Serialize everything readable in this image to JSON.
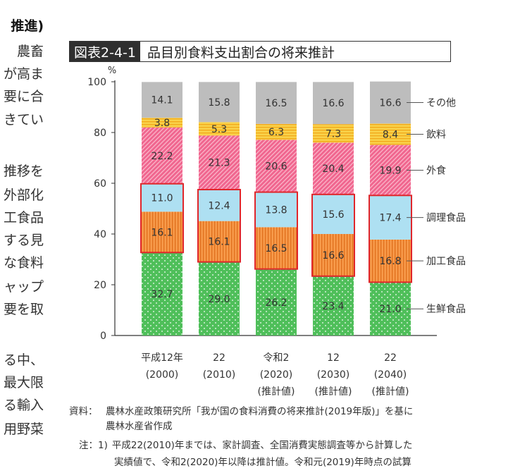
{
  "left_text_lines": [
    "推進)",
    "農畜",
    "が高ま",
    "要に合",
    "きてい",
    "",
    "推移を",
    "外部化",
    "工食品",
    "する見",
    "な食料",
    "ャップ",
    "要を取",
    "",
    "る中、",
    "最大限",
    "る輸入",
    "用野菜"
  ],
  "figure": {
    "number": "図表2-4-1",
    "title": "品目別食料支出割合の将来推計"
  },
  "chart_data": {
    "type": "bar",
    "stacked": true,
    "y_unit": "%",
    "ylim": [
      0,
      100
    ],
    "yticks": [
      0,
      20,
      40,
      60,
      80,
      100
    ],
    "grid": false,
    "categories": [
      {
        "era": "平成12年",
        "year": "(2000)",
        "note": ""
      },
      {
        "era": "22",
        "year": "(2010)",
        "note": ""
      },
      {
        "era": "令和2",
        "year": "(2020)",
        "note": "(推計値)"
      },
      {
        "era": "12",
        "year": "(2030)",
        "note": "(推計値)"
      },
      {
        "era": "22",
        "year": "(2040)",
        "note": "(推計値)"
      }
    ],
    "series": [
      {
        "name": "生鮮食品",
        "color": "#4fbf5a",
        "pattern": "dots",
        "values": [
          32.7,
          29.0,
          26.2,
          23.4,
          21.0
        ]
      },
      {
        "name": "加工食品",
        "color": "#f79a4a",
        "pattern": "vlines",
        "values": [
          16.1,
          16.1,
          16.5,
          16.6,
          16.8
        ]
      },
      {
        "name": "調理食品",
        "color": "#aee0f2",
        "pattern": "solid",
        "values": [
          11.0,
          12.4,
          13.8,
          15.6,
          17.4
        ]
      },
      {
        "name": "外食",
        "color": "#f0668f",
        "pattern": "diagonal",
        "values": [
          22.2,
          21.3,
          20.6,
          20.4,
          19.9
        ]
      },
      {
        "name": "飲料",
        "color": "#f9d24a",
        "pattern": "hlines",
        "values": [
          3.8,
          5.3,
          6.3,
          7.3,
          8.4
        ]
      },
      {
        "name": "その他",
        "color": "#bdbdbd",
        "pattern": "solid",
        "values": [
          14.1,
          15.8,
          16.5,
          16.6,
          16.6
        ]
      }
    ],
    "highlight_series": [
      "加工食品",
      "調理食品"
    ],
    "highlight_color": "#e0262b"
  },
  "source": {
    "label": "資料：",
    "line1": "農林水産政策研究所「我が国の食料消費の将来推計(2019年版)」を基に",
    "line2": "農林水産省作成"
  },
  "notes": {
    "label": "注：1)",
    "line1": "平成22(2010)年までは、家計調査、全国消費実態調査等から計算した",
    "line2": "実績値で、令和2(2020)年以降は推計値。令和元(2019)年時点の試算"
  }
}
